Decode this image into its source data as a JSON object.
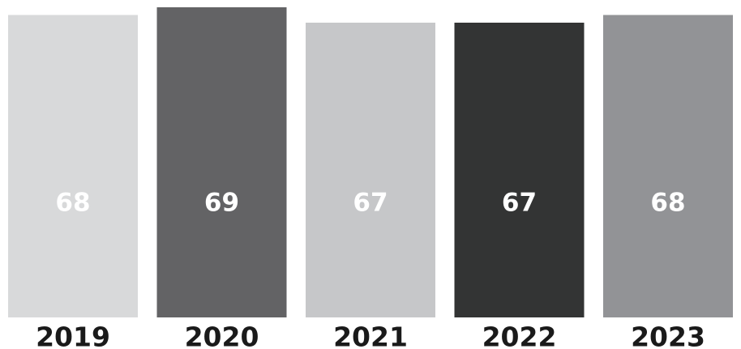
{
  "chart_data": {
    "type": "bar",
    "categories": [
      "2019",
      "2020",
      "2021",
      "2022",
      "2023"
    ],
    "values": [
      68,
      69,
      67,
      67,
      68
    ],
    "colors": [
      "#d8d9da",
      "#636365",
      "#c6c7c9",
      "#333434",
      "#929396"
    ],
    "value_label_color": "#ffffff",
    "category_label_color": "#1a1a1a",
    "title": "",
    "xlabel": "",
    "ylabel": "",
    "grid": false,
    "legend": "none"
  }
}
